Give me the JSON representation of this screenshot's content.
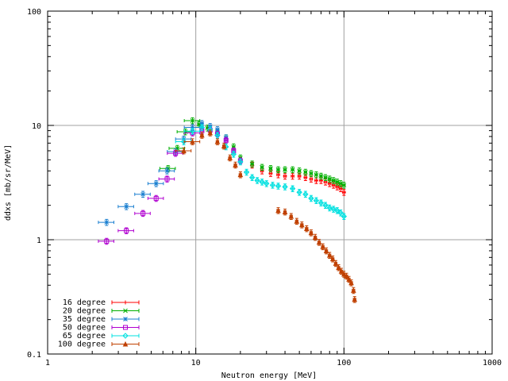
{
  "chart_data": {
    "type": "scatter",
    "title": "",
    "xlabel": "Neutron energy [MeV]",
    "ylabel": "ddxs [mb/sr/MeV]",
    "xscale": "log",
    "yscale": "log",
    "xlim": [
      1,
      1000
    ],
    "ylim": [
      0.1,
      100
    ],
    "grid": "major only",
    "legend_position": "bottom-left",
    "x_ticks": [
      {
        "v": 1,
        "label": "1"
      },
      {
        "v": 10,
        "label": "10"
      },
      {
        "v": 100,
        "label": "100"
      },
      {
        "v": 1000,
        "label": "1000"
      }
    ],
    "y_ticks": [
      {
        "v": 0.1,
        "label": "0.1"
      },
      {
        "v": 1,
        "label": "1"
      },
      {
        "v": 10,
        "label": "10"
      },
      {
        "v": 100,
        "label": "100"
      }
    ],
    "series": [
      {
        "name": "16 degree",
        "color": "#ff0000",
        "marker": "plus",
        "points": [
          [
            20,
            5.0
          ],
          [
            24,
            4.5
          ],
          [
            28,
            4.0
          ],
          [
            32,
            3.8
          ],
          [
            36,
            3.7
          ],
          [
            40,
            3.6
          ],
          [
            45,
            3.6
          ],
          [
            50,
            3.6
          ],
          [
            55,
            3.5
          ],
          [
            60,
            3.4
          ],
          [
            65,
            3.3
          ],
          [
            70,
            3.3
          ],
          [
            75,
            3.2
          ],
          [
            80,
            3.1
          ],
          [
            85,
            3.0
          ],
          [
            90,
            2.9
          ],
          [
            95,
            2.8
          ],
          [
            100,
            2.6
          ]
        ]
      },
      {
        "name": "20 degree",
        "color": "#00b000",
        "marker": "x",
        "points": [
          [
            6.5,
            4.2
          ],
          [
            7.5,
            6.3
          ],
          [
            8.5,
            8.8
          ],
          [
            9.5,
            11.0
          ],
          [
            10.5,
            10.2
          ],
          [
            12,
            9.5
          ],
          [
            14,
            8.8
          ],
          [
            16,
            7.8
          ],
          [
            18,
            6.5
          ],
          [
            20,
            5.2
          ],
          [
            24,
            4.6
          ],
          [
            28,
            4.3
          ],
          [
            32,
            4.2
          ],
          [
            36,
            4.1
          ],
          [
            40,
            4.1
          ],
          [
            45,
            4.1
          ],
          [
            50,
            4.0
          ],
          [
            55,
            3.9
          ],
          [
            60,
            3.8
          ],
          [
            65,
            3.7
          ],
          [
            70,
            3.6
          ],
          [
            75,
            3.5
          ],
          [
            80,
            3.4
          ],
          [
            85,
            3.3
          ],
          [
            90,
            3.2
          ],
          [
            95,
            3.1
          ],
          [
            100,
            3.0
          ]
        ]
      },
      {
        "name": "35 degree",
        "color": "#1a7fd0",
        "marker": "star",
        "points": [
          [
            2.5,
            1.42
          ],
          [
            3.4,
            1.95
          ],
          [
            4.4,
            2.5
          ],
          [
            5.4,
            3.1
          ],
          [
            6.4,
            4.0
          ],
          [
            7.3,
            5.9
          ],
          [
            8.3,
            7.6
          ],
          [
            9.5,
            9.6
          ],
          [
            11,
            10.4
          ],
          [
            12.5,
            9.8
          ],
          [
            14,
            9.2
          ],
          [
            16,
            7.8
          ]
        ]
      },
      {
        "name": "50 degree",
        "color": "#b000d0",
        "marker": "square",
        "points": [
          [
            2.5,
            0.97
          ],
          [
            3.4,
            1.2
          ],
          [
            4.4,
            1.7
          ],
          [
            5.4,
            2.3
          ],
          [
            6.4,
            3.4
          ],
          [
            7.3,
            5.7
          ],
          [
            9.5,
            8.6
          ],
          [
            11,
            9.0
          ],
          [
            12.5,
            9.1
          ],
          [
            14,
            8.4
          ],
          [
            16,
            7.4
          ],
          [
            18,
            6.0
          ],
          [
            20,
            4.9
          ]
        ]
      },
      {
        "name": "65 degree",
        "color": "#00e0e0",
        "marker": "diamond",
        "points": [
          [
            8.3,
            7.2
          ],
          [
            9.5,
            8.9
          ],
          [
            11,
            9.6
          ],
          [
            12.5,
            9.2
          ],
          [
            14,
            8.2
          ],
          [
            16,
            6.5
          ],
          [
            18,
            5.6
          ],
          [
            20,
            4.8
          ],
          [
            22,
            3.9
          ],
          [
            24,
            3.5
          ],
          [
            26,
            3.3
          ],
          [
            28,
            3.2
          ],
          [
            30,
            3.1
          ],
          [
            33,
            3.0
          ],
          [
            36,
            2.95
          ],
          [
            40,
            2.9
          ],
          [
            45,
            2.8
          ],
          [
            50,
            2.6
          ],
          [
            55,
            2.5
          ],
          [
            60,
            2.3
          ],
          [
            65,
            2.2
          ],
          [
            70,
            2.1
          ],
          [
            75,
            2.0
          ],
          [
            80,
            1.9
          ],
          [
            85,
            1.85
          ],
          [
            90,
            1.8
          ],
          [
            95,
            1.72
          ],
          [
            100,
            1.6
          ]
        ]
      },
      {
        "name": "100 degree",
        "color": "#c04000",
        "marker": "triangle",
        "points": [
          [
            8.3,
            6.0
          ],
          [
            9.5,
            7.2
          ],
          [
            11,
            8.2
          ],
          [
            12.5,
            8.6
          ],
          [
            14,
            7.2
          ],
          [
            15.5,
            6.6
          ],
          [
            17,
            5.2
          ],
          [
            18.5,
            4.5
          ],
          [
            20,
            3.7
          ],
          [
            36,
            1.8
          ],
          [
            40,
            1.75
          ],
          [
            44,
            1.6
          ],
          [
            48,
            1.45
          ],
          [
            52,
            1.35
          ],
          [
            56,
            1.25
          ],
          [
            60,
            1.15
          ],
          [
            64,
            1.05
          ],
          [
            68,
            0.95
          ],
          [
            72,
            0.87
          ],
          [
            76,
            0.8
          ],
          [
            80,
            0.73
          ],
          [
            84,
            0.68
          ],
          [
            88,
            0.62
          ],
          [
            92,
            0.57
          ],
          [
            96,
            0.53
          ],
          [
            100,
            0.5
          ],
          [
            104,
            0.48
          ],
          [
            108,
            0.45
          ],
          [
            112,
            0.42
          ],
          [
            116,
            0.36
          ],
          [
            118,
            0.3
          ]
        ]
      }
    ]
  }
}
